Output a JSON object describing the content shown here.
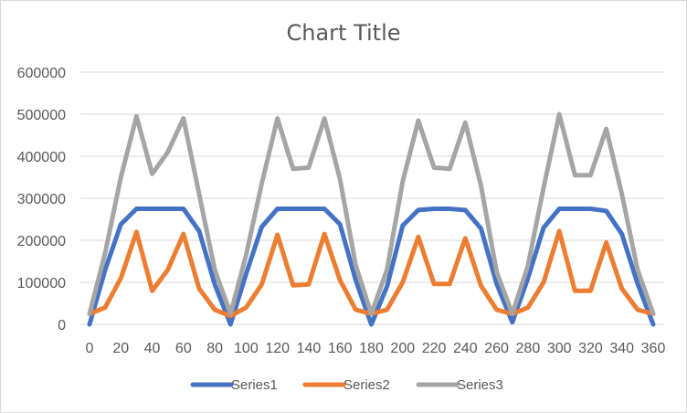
{
  "chart_data": {
    "type": "line",
    "title": "Chart Title",
    "xlabel": "",
    "ylabel": "",
    "ylim": [
      0,
      600000
    ],
    "xlim": [
      0,
      360
    ],
    "grid": true,
    "legend_position": "bottom",
    "x_ticks": [
      0,
      20,
      40,
      60,
      80,
      100,
      120,
      140,
      160,
      180,
      200,
      220,
      240,
      260,
      280,
      300,
      320,
      340,
      360
    ],
    "y_ticks": [
      0,
      100000,
      200000,
      300000,
      400000,
      500000,
      600000
    ],
    "x": [
      0,
      10,
      20,
      30,
      40,
      50,
      60,
      70,
      80,
      90,
      100,
      110,
      120,
      130,
      140,
      150,
      160,
      170,
      180,
      190,
      200,
      210,
      220,
      230,
      240,
      250,
      260,
      270,
      280,
      290,
      300,
      310,
      320,
      330,
      340,
      350,
      360
    ],
    "series": [
      {
        "name": "Series1",
        "color": "#4472c4",
        "values": [
          0,
          130000,
          238000,
          275000,
          275000,
          275000,
          275000,
          222000,
          95000,
          0,
          120000,
          232000,
          275000,
          275000,
          275000,
          275000,
          238000,
          105000,
          0,
          90000,
          235000,
          272000,
          275000,
          275000,
          272000,
          228000,
          97000,
          5000,
          110000,
          230000,
          275000,
          275000,
          275000,
          270000,
          215000,
          97000,
          0
        ]
      },
      {
        "name": "Series2",
        "color": "#ed7d31",
        "values": [
          25000,
          40000,
          110000,
          220000,
          80000,
          130000,
          215000,
          85000,
          35000,
          20000,
          40000,
          95000,
          213000,
          93000,
          95000,
          215000,
          105000,
          35000,
          25000,
          35000,
          100000,
          208000,
          96000,
          96000,
          205000,
          92000,
          35000,
          25000,
          40000,
          100000,
          222000,
          80000,
          80000,
          195000,
          85000,
          35000,
          25000
        ]
      },
      {
        "name": "Series3",
        "color": "#a5a5a5",
        "values": [
          25000,
          170000,
          350000,
          495000,
          358000,
          410000,
          490000,
          310000,
          130000,
          25000,
          165000,
          335000,
          490000,
          370000,
          373000,
          490000,
          345000,
          140000,
          25000,
          130000,
          340000,
          485000,
          373000,
          370000,
          480000,
          330000,
          125000,
          25000,
          140000,
          325000,
          500000,
          355000,
          355000,
          465000,
          310000,
          130000,
          25000
        ]
      }
    ]
  }
}
